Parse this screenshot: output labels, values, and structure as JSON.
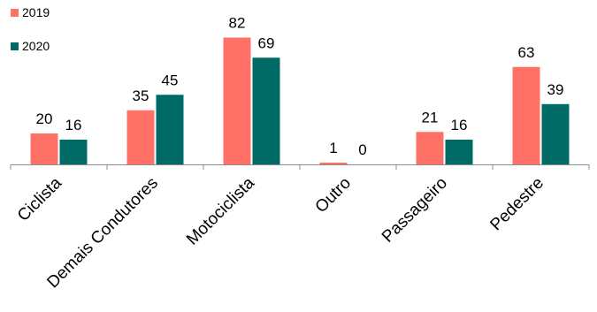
{
  "chart_data": {
    "type": "bar",
    "categories": [
      "Ciclista",
      "Demais Condutores",
      "Motociclista",
      "Outro",
      "Passageiro",
      "Pedestre"
    ],
    "series": [
      {
        "name": "2019",
        "values": [
          20,
          35,
          82,
          1,
          21,
          63
        ],
        "color": "#ff7166"
      },
      {
        "name": "2020",
        "values": [
          16,
          45,
          69,
          0,
          16,
          39
        ],
        "color": "#006b66"
      }
    ],
    "ylim": [
      0,
      100
    ],
    "grid": false,
    "legend_position": "top-left",
    "axis_color": "#8c8c8c"
  }
}
